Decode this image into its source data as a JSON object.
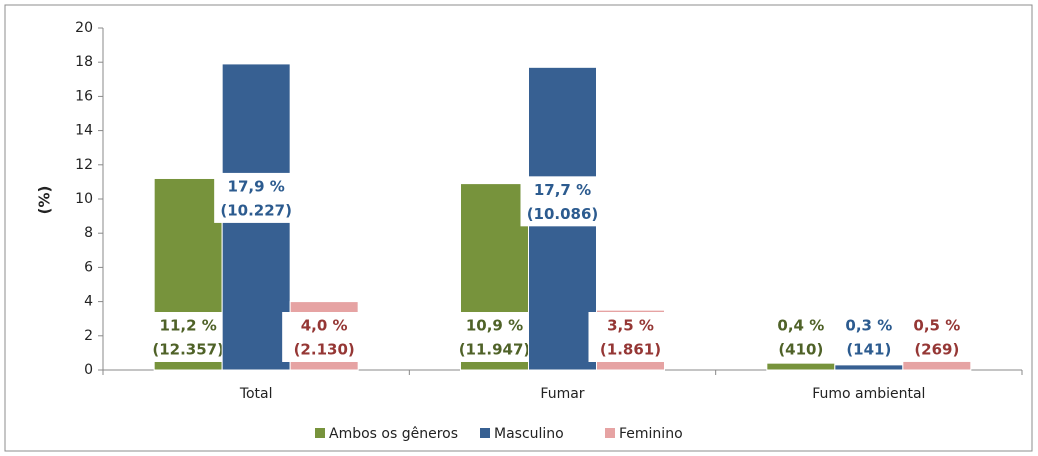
{
  "chart_data": {
    "type": "bar",
    "y_label": "(%)",
    "categories": [
      "Total",
      "Fumar",
      "Fumo ambiental"
    ],
    "series": [
      {
        "name": "Ambos os gêneros",
        "color": "#77933c",
        "text_color": "#4f6228",
        "values": [
          11.2,
          10.9,
          0.4
        ],
        "value_labels": [
          "11,2 %",
          "10,9 %",
          "0,4 %"
        ],
        "count_labels": [
          "(12.357)",
          "(11.947)",
          "(410)"
        ]
      },
      {
        "name": "Masculino",
        "color": "#376092",
        "text_color": "#2c5b8f",
        "values": [
          17.9,
          17.7,
          0.3
        ],
        "value_labels": [
          "17,9 %",
          "17,7 %",
          "0,3 %"
        ],
        "count_labels": [
          "(10.227)",
          "(10.086)",
          "(141)"
        ]
      },
      {
        "name": "Feminino",
        "color": "#e6a3a3",
        "text_color": "#953735",
        "values": [
          4.0,
          3.5,
          0.5
        ],
        "value_labels": [
          "4,0 %",
          "3,5 %",
          "0,5 %"
        ],
        "count_labels": [
          "(2.130)",
          "(1.861)",
          "(269)"
        ]
      }
    ],
    "ylim": [
      0,
      20
    ],
    "yticks": [
      0,
      2,
      4,
      6,
      8,
      10,
      12,
      14,
      16,
      18,
      20
    ],
    "grid": false,
    "legend": "bottom"
  }
}
